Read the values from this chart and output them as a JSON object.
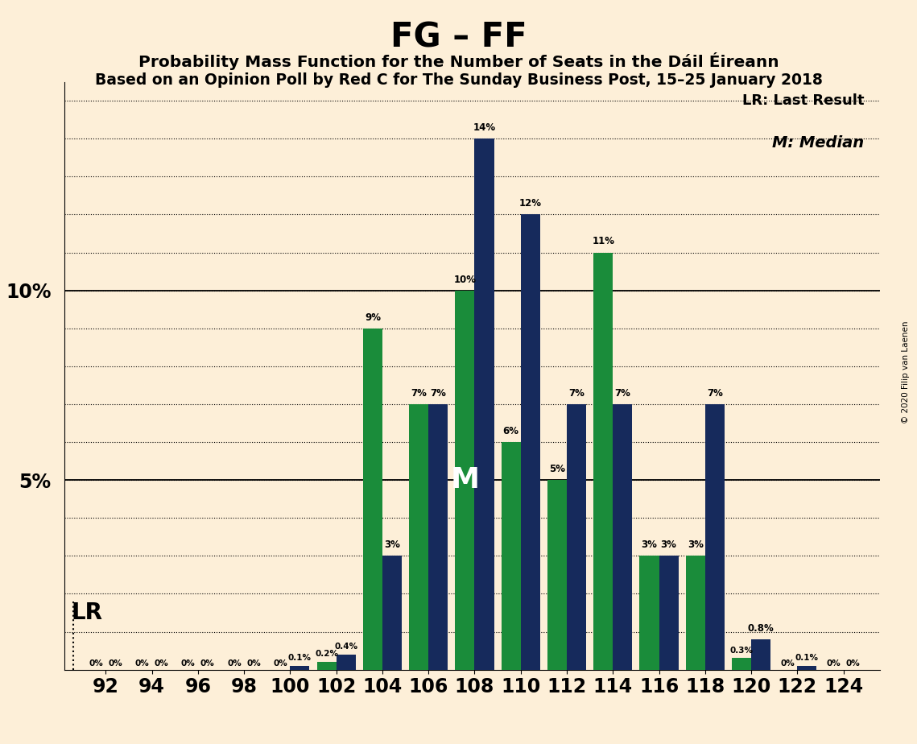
{
  "title": "FG – FF",
  "subtitle1": "Probability Mass Function for the Number of Seats in the Dáil Éireann",
  "subtitle2": "Based on an Opinion Poll by Red C for The Sunday Business Post, 15–25 January 2018",
  "copyright": "© 2020 Filip van Laenen",
  "seats": [
    92,
    94,
    96,
    98,
    100,
    102,
    104,
    106,
    108,
    110,
    112,
    114,
    116,
    118,
    120,
    122,
    124
  ],
  "ff_values": [
    0.0,
    0.0,
    0.0,
    0.0,
    0.0,
    0.2,
    9.0,
    7.0,
    10.0,
    6.0,
    5.0,
    11.0,
    3.0,
    3.0,
    0.3,
    0.0,
    0.0
  ],
  "fg_values": [
    0.0,
    0.0,
    0.0,
    0.0,
    0.1,
    0.4,
    3.0,
    7.0,
    14.0,
    12.0,
    7.0,
    7.0,
    3.0,
    7.0,
    0.8,
    0.1,
    0.0
  ],
  "ff_labels": [
    "0%",
    "0%",
    "0%",
    "0%",
    "0%",
    "0.2%",
    "9%",
    "7%",
    "10%",
    "6%",
    "5%",
    "11%",
    "3%",
    "3%",
    "0.3%",
    "0%",
    "0%"
  ],
  "fg_labels": [
    "0%",
    "0%",
    "0%",
    "0%",
    "0.1%",
    "0.4%",
    "3%",
    "7%",
    "14%",
    "12%",
    "7%",
    "7%",
    "3%",
    "7%",
    "0.8%",
    "0.1%",
    "0%"
  ],
  "ff_color": "#1a8c3a",
  "fg_color": "#162a5c",
  "background_color": "#fdefd8",
  "ylim": [
    0,
    15.5
  ],
  "legend_lr": "LR: Last Result",
  "legend_m": "M: Median",
  "m_seat_index": 8,
  "lr_seat_index": 0
}
